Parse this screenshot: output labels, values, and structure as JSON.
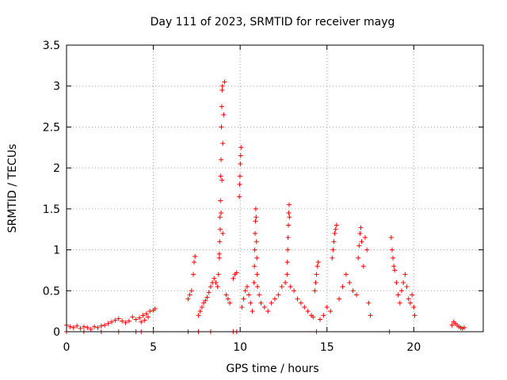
{
  "chart_data": {
    "type": "scatter",
    "title": "Day 111 of 2023, SRMTID for receiver mayg",
    "xlabel": "GPS time / hours",
    "ylabel": "SRMTID / TECUs",
    "xlim": [
      0,
      24
    ],
    "ylim": [
      0,
      3.5
    ],
    "x_ticks": [
      0,
      5,
      10,
      15,
      20
    ],
    "y_ticks": [
      0,
      0.5,
      1,
      1.5,
      2,
      2.5,
      3,
      3.5
    ],
    "x_tick_labels": [
      "0",
      "5",
      "10",
      "15",
      "20"
    ],
    "y_tick_labels": [
      "0",
      "0.5",
      "1",
      "1.5",
      "2",
      "2.5",
      "3",
      "3.5"
    ],
    "grid": true,
    "marker": "+",
    "color": "#ff0000",
    "series": [
      {
        "name": "SRMTID",
        "x": [
          0.0,
          0.2,
          0.4,
          0.6,
          0.8,
          1.0,
          1.2,
          1.4,
          1.6,
          1.8,
          2.0,
          2.2,
          2.4,
          2.6,
          2.8,
          3.0,
          3.2,
          3.4,
          3.6,
          3.8,
          4.0,
          4.2,
          4.4,
          4.6,
          4.8,
          5.0,
          5.1,
          4.3,
          4.5,
          4.7,
          7.0,
          7.1,
          7.2,
          7.3,
          7.35,
          7.4,
          7.6,
          7.7,
          7.8,
          7.9,
          8.0,
          8.1,
          8.2,
          8.3,
          8.4,
          8.5,
          8.6,
          8.7,
          8.75,
          8.8,
          8.85,
          8.9,
          8.95,
          9.0,
          9.05,
          9.1,
          9.2,
          9.3,
          9.4,
          8.8,
          8.82,
          8.84,
          8.86,
          8.88,
          8.9,
          8.92,
          8.94,
          8.96,
          8.98,
          9.0,
          9.6,
          9.7,
          9.8,
          9.95,
          9.97,
          9.99,
          10.01,
          10.03,
          10.05,
          10.1,
          10.2,
          10.3,
          10.4,
          10.5,
          10.6,
          10.7,
          10.8,
          10.82,
          10.84,
          10.86,
          10.88,
          10.9,
          10.92,
          10.94,
          10.96,
          10.98,
          11.0,
          11.1,
          11.2,
          11.4,
          11.6,
          11.8,
          12.0,
          12.2,
          12.4,
          12.6,
          12.7,
          12.72,
          12.74,
          12.76,
          12.78,
          12.8,
          12.82,
          12.84,
          12.9,
          13.1,
          13.3,
          13.5,
          13.7,
          13.9,
          14.1,
          14.2,
          14.3,
          14.35,
          14.4,
          14.45,
          14.5,
          14.6,
          14.8,
          15.0,
          15.2,
          15.3,
          15.35,
          15.4,
          15.45,
          15.5,
          15.55,
          15.7,
          15.9,
          16.1,
          16.3,
          16.5,
          16.7,
          16.8,
          16.85,
          16.9,
          16.95,
          17.0,
          17.1,
          17.2,
          17.3,
          17.4,
          17.5,
          18.7,
          18.75,
          18.8,
          18.85,
          18.9,
          19.0,
          19.1,
          19.2,
          19.3,
          19.4,
          19.5,
          19.6,
          19.7,
          19.8,
          19.9,
          20.0,
          20.05,
          22.2,
          22.3,
          22.4,
          22.5,
          22.6,
          22.7,
          22.8,
          22.9,
          0.0,
          1.0,
          2.0,
          3.0,
          4.0,
          4.3,
          5.0,
          7.0,
          7.6,
          8.3,
          9.6,
          9.8,
          14.4,
          18.6
        ],
        "y": [
          0.08,
          0.06,
          0.05,
          0.07,
          0.04,
          0.06,
          0.05,
          0.03,
          0.06,
          0.05,
          0.07,
          0.08,
          0.1,
          0.12,
          0.14,
          0.16,
          0.13,
          0.11,
          0.13,
          0.18,
          0.15,
          0.17,
          0.2,
          0.22,
          0.25,
          0.26,
          0.28,
          0.12,
          0.14,
          0.18,
          0.4,
          0.45,
          0.5,
          0.7,
          0.85,
          0.92,
          0.2,
          0.25,
          0.3,
          0.35,
          0.38,
          0.42,
          0.48,
          0.55,
          0.6,
          0.65,
          0.6,
          0.55,
          0.7,
          0.9,
          1.25,
          1.45,
          1.85,
          2.3,
          2.65,
          3.05,
          0.45,
          0.4,
          0.35,
          0.95,
          1.1,
          1.4,
          1.6,
          1.9,
          2.1,
          2.5,
          2.75,
          2.95,
          3.0,
          1.2,
          0.65,
          0.7,
          0.72,
          1.65,
          1.8,
          1.9,
          2.05,
          2.15,
          2.25,
          0.3,
          0.4,
          0.5,
          0.55,
          0.45,
          0.35,
          0.25,
          0.6,
          0.8,
          1.0,
          1.2,
          1.35,
          1.5,
          1.4,
          1.1,
          0.9,
          0.7,
          0.55,
          0.45,
          0.35,
          0.3,
          0.25,
          0.35,
          0.4,
          0.45,
          0.55,
          0.6,
          0.7,
          0.85,
          1.0,
          1.15,
          1.3,
          1.45,
          1.55,
          1.4,
          0.55,
          0.5,
          0.4,
          0.35,
          0.3,
          0.25,
          0.2,
          0.18,
          0.5,
          0.6,
          0.7,
          0.8,
          0.85,
          0.15,
          0.2,
          0.3,
          0.25,
          0.9,
          1.0,
          1.1,
          1.2,
          1.25,
          1.3,
          0.4,
          0.55,
          0.7,
          0.6,
          0.5,
          0.45,
          0.9,
          1.05,
          1.2,
          1.27,
          1.1,
          0.8,
          1.15,
          1.0,
          0.35,
          0.2,
          1.15,
          1.0,
          0.9,
          0.8,
          0.75,
          0.6,
          0.45,
          0.35,
          0.5,
          0.6,
          0.7,
          0.55,
          0.4,
          0.35,
          0.45,
          0.3,
          0.2,
          0.08,
          0.12,
          0.1,
          0.08,
          0.06,
          0.05,
          0.04,
          0.05,
          0.0,
          0.0,
          0.0,
          0.0,
          0.0,
          0.0,
          0.0,
          0.0,
          0.0,
          0.0,
          0.0,
          0.0,
          0.0,
          0.0
        ]
      }
    ]
  }
}
